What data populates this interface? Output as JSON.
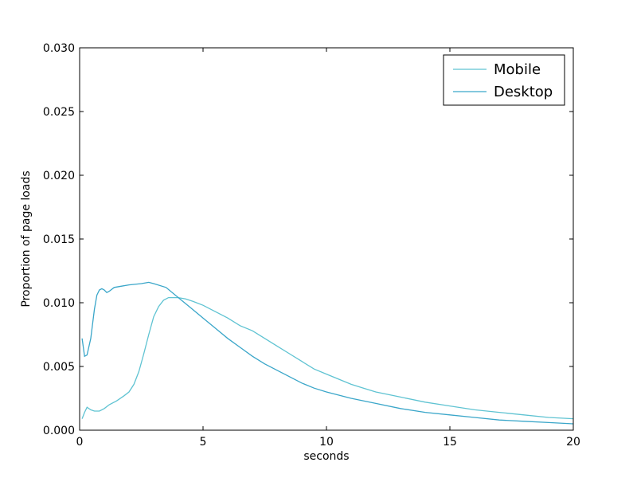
{
  "chart_data": {
    "type": "line",
    "title": "",
    "xlabel": "seconds",
    "ylabel": "Proportion of page loads",
    "xlim": [
      0,
      20
    ],
    "ylim": [
      0,
      0.03
    ],
    "x_ticks": [
      0,
      5,
      10,
      15,
      20
    ],
    "x_tick_labels": [
      "0",
      "5",
      "10",
      "15",
      "20"
    ],
    "y_ticks": [
      0,
      0.005,
      0.01,
      0.015,
      0.02,
      0.025,
      0.03
    ],
    "y_tick_labels": [
      "0.000",
      "0.005",
      "0.010",
      "0.015",
      "0.020",
      "0.025",
      "0.030"
    ],
    "grid": false,
    "legend_position": "top-right",
    "series": [
      {
        "name": "Mobile",
        "color": "#5fc3d2",
        "line_style": "solid",
        "points": [
          [
            0.1,
            0.0009
          ],
          [
            0.2,
            0.0014
          ],
          [
            0.3,
            0.0018
          ],
          [
            0.45,
            0.0016
          ],
          [
            0.6,
            0.0015
          ],
          [
            0.8,
            0.0015
          ],
          [
            1.0,
            0.0017
          ],
          [
            1.2,
            0.002
          ],
          [
            1.5,
            0.0023
          ],
          [
            1.8,
            0.0027
          ],
          [
            2.0,
            0.003
          ],
          [
            2.2,
            0.0036
          ],
          [
            2.4,
            0.0046
          ],
          [
            2.6,
            0.006
          ],
          [
            2.8,
            0.0075
          ],
          [
            3.0,
            0.0089
          ],
          [
            3.2,
            0.0097
          ],
          [
            3.4,
            0.0102
          ],
          [
            3.6,
            0.0104
          ],
          [
            3.8,
            0.0104
          ],
          [
            4.0,
            0.0104
          ],
          [
            4.3,
            0.0103
          ],
          [
            4.6,
            0.0101
          ],
          [
            5.0,
            0.0098
          ],
          [
            5.5,
            0.0093
          ],
          [
            6.0,
            0.0088
          ],
          [
            6.5,
            0.0082
          ],
          [
            7.0,
            0.0078
          ],
          [
            7.5,
            0.0072
          ],
          [
            8.0,
            0.0066
          ],
          [
            8.5,
            0.006
          ],
          [
            9.0,
            0.0054
          ],
          [
            9.5,
            0.0048
          ],
          [
            10.0,
            0.0044
          ],
          [
            10.5,
            0.004
          ],
          [
            11.0,
            0.0036
          ],
          [
            11.5,
            0.0033
          ],
          [
            12.0,
            0.003
          ],
          [
            13.0,
            0.0026
          ],
          [
            14.0,
            0.0022
          ],
          [
            15.0,
            0.0019
          ],
          [
            16.0,
            0.0016
          ],
          [
            17.0,
            0.0014
          ],
          [
            18.0,
            0.0012
          ],
          [
            19.0,
            0.001
          ],
          [
            20.0,
            0.0009
          ]
        ]
      },
      {
        "name": "Desktop",
        "color": "#3aa6c9",
        "line_style": "solid",
        "points": [
          [
            0.1,
            0.0072
          ],
          [
            0.2,
            0.0058
          ],
          [
            0.3,
            0.0059
          ],
          [
            0.45,
            0.0072
          ],
          [
            0.6,
            0.0095
          ],
          [
            0.7,
            0.0106
          ],
          [
            0.8,
            0.011
          ],
          [
            0.9,
            0.0111
          ],
          [
            1.0,
            0.011
          ],
          [
            1.1,
            0.0108
          ],
          [
            1.2,
            0.0109
          ],
          [
            1.4,
            0.0112
          ],
          [
            1.7,
            0.0113
          ],
          [
            2.0,
            0.0114
          ],
          [
            2.5,
            0.0115
          ],
          [
            2.8,
            0.0116
          ],
          [
            3.0,
            0.0115
          ],
          [
            3.5,
            0.0112
          ],
          [
            4.0,
            0.0104
          ],
          [
            4.5,
            0.0096
          ],
          [
            5.0,
            0.0088
          ],
          [
            5.5,
            0.008
          ],
          [
            6.0,
            0.0072
          ],
          [
            6.5,
            0.0065
          ],
          [
            7.0,
            0.0058
          ],
          [
            7.5,
            0.0052
          ],
          [
            8.0,
            0.0047
          ],
          [
            8.5,
            0.0042
          ],
          [
            9.0,
            0.0037
          ],
          [
            9.5,
            0.0033
          ],
          [
            10.0,
            0.003
          ],
          [
            11.0,
            0.0025
          ],
          [
            12.0,
            0.0021
          ],
          [
            13.0,
            0.0017
          ],
          [
            14.0,
            0.0014
          ],
          [
            15.0,
            0.0012
          ],
          [
            16.0,
            0.001
          ],
          [
            17.0,
            0.0008
          ],
          [
            18.0,
            0.0007
          ],
          [
            19.0,
            0.0006
          ],
          [
            20.0,
            0.0005
          ]
        ]
      }
    ]
  }
}
